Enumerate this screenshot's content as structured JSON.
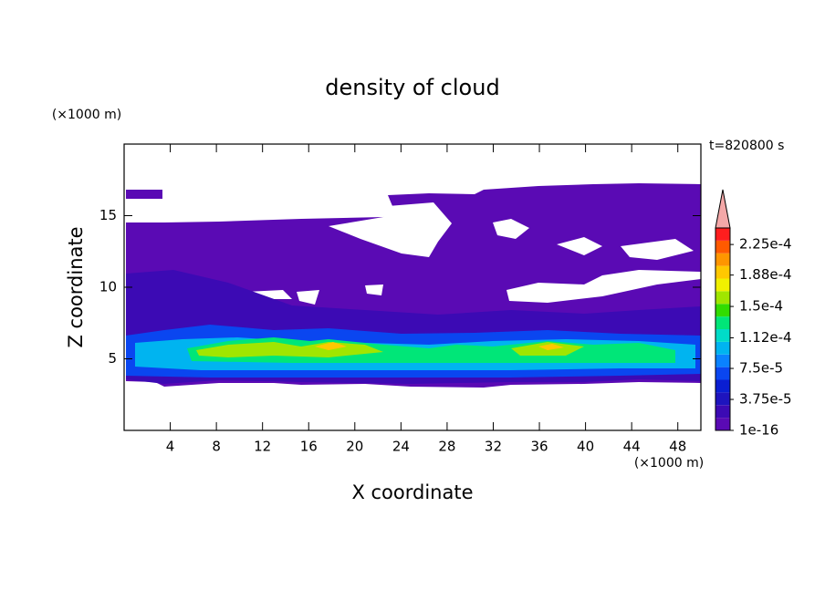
{
  "chart_data": {
    "type": "contour",
    "title": "density of cloud",
    "x_label": "X coordinate",
    "y_label": "Z coordinate",
    "x_unit": "(×1000 m)",
    "y_unit": "(×1000 m)",
    "annotation": "t=820800 s",
    "xlim": [
      0,
      50
    ],
    "xticks": [
      4,
      8,
      12,
      16,
      20,
      24,
      28,
      32,
      36,
      40,
      44,
      48
    ],
    "ylim": [
      0,
      20
    ],
    "yticks": [
      5,
      10,
      15
    ],
    "colorbar": {
      "lim": [
        1e-16,
        0.000245
      ],
      "ticks": [
        1e-16,
        {
          "value": 3.75e-05,
          "label": "3.75e-5"
        },
        {
          "value": 7.5e-05,
          "label": "7.5e-5"
        },
        {
          "value": 0.000112,
          "label": "1.12e-4"
        },
        {
          "value": 0.00015,
          "label": "1.5e-4"
        },
        {
          "value": 0.000188,
          "label": "1.88e-4"
        },
        {
          "value": 0.000225,
          "label": "2.25e-4"
        }
      ],
      "colors": [
        "#5a0ab4",
        "#3c0ab4",
        "#1e14be",
        "#0a1ed2",
        "#0a46f0",
        "#0a82ff",
        "#00b4f0",
        "#00dcc8",
        "#00e678",
        "#32dc00",
        "#a0e600",
        "#f0f000",
        "#ffc800",
        "#ff9600",
        "#ff5a00",
        "#ff1e1e"
      ],
      "extend_color": "#f4a8a8"
    }
  }
}
